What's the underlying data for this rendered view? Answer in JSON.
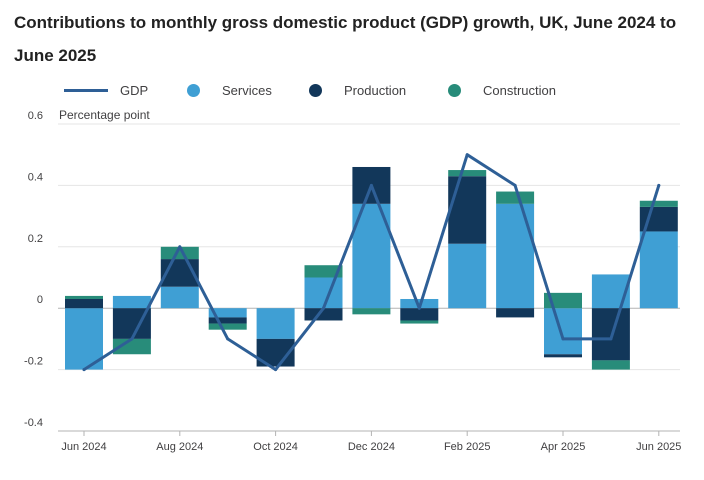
{
  "chart_data": {
    "type": "bar",
    "title": "Contributions to monthly gross domestic product (GDP) growth, UK, June 2024 to June 2025",
    "ylabel": "Percentage point",
    "ylim": [
      -0.4,
      0.6
    ],
    "yticks": [
      -0.4,
      -0.2,
      0,
      0.2,
      0.4,
      0.6
    ],
    "ytick_labels": [
      "-0.4",
      "-0.2",
      "0",
      "0.2",
      "0.4",
      "0.6"
    ],
    "categories": [
      "Jun 2024",
      "Jul 2024",
      "Aug 2024",
      "Sep 2024",
      "Oct 2024",
      "Nov 2024",
      "Dec 2024",
      "Jan 2025",
      "Feb 2025",
      "Mar 2025",
      "Apr 2025",
      "May 2025",
      "Jun 2025"
    ],
    "xtick_labels": [
      "Jun 2024",
      "",
      "Aug 2024",
      "",
      "Oct 2024",
      "",
      "Dec 2024",
      "",
      "Feb 2025",
      "",
      "Apr 2025",
      "",
      "Jun 2025"
    ],
    "stacked": true,
    "series": [
      {
        "name": "Services",
        "kind": "bar",
        "color": "#3f9fd4",
        "values": [
          -0.2,
          0.04,
          0.07,
          -0.03,
          -0.1,
          0.1,
          0.34,
          0.03,
          0.21,
          0.34,
          -0.15,
          0.11,
          0.25
        ]
      },
      {
        "name": "Production",
        "kind": "bar",
        "color": "#12375a",
        "values": [
          0.03,
          -0.1,
          0.09,
          -0.02,
          -0.09,
          -0.04,
          0.12,
          -0.04,
          0.22,
          -0.03,
          -0.01,
          -0.17,
          0.08
        ]
      },
      {
        "name": "Construction",
        "kind": "bar",
        "color": "#288c7a",
        "values": [
          0.01,
          -0.05,
          0.04,
          -0.02,
          0.0,
          0.04,
          -0.02,
          -0.01,
          0.02,
          0.04,
          0.05,
          -0.03,
          0.02
        ]
      },
      {
        "name": "GDP",
        "kind": "line",
        "color": "#2e5f96",
        "values": [
          -0.2,
          -0.1,
          0.2,
          -0.1,
          -0.2,
          0.0,
          0.4,
          0.0,
          0.5,
          0.4,
          -0.1,
          -0.1,
          0.4
        ]
      }
    ],
    "legend": [
      "GDP",
      "Services",
      "Production",
      "Construction"
    ],
    "legend_position": "top",
    "grid": true
  }
}
